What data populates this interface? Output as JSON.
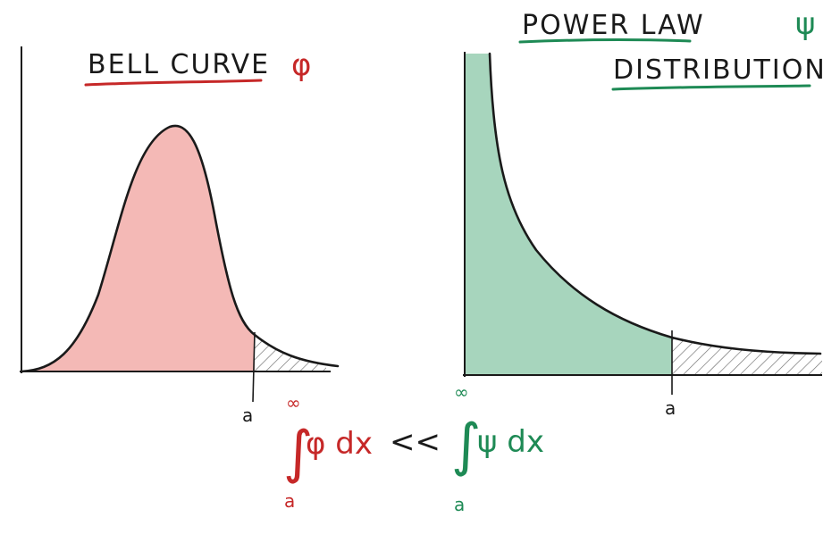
{
  "left_panel": {
    "title": "BELL CURVE",
    "symbol": "φ",
    "threshold_label": "a"
  },
  "right_panel": {
    "title_line1": "POWER LAW",
    "title_line2": "DISTRIBUTION",
    "symbol": "ψ",
    "threshold_label": "a"
  },
  "inequality": {
    "left_integral": {
      "upper": "∞",
      "sign": "∫",
      "integrand": "φ dx",
      "lower": "a"
    },
    "relation": "<<",
    "right_integral": {
      "upper": "∞",
      "sign": "∫",
      "integrand": "ψ dx",
      "lower": "a"
    }
  },
  "colors": {
    "ink": "#1a1a1a",
    "bell_fill": "#f4b9b6",
    "bell_accent": "#c62828",
    "power_fill": "#a7d5bd",
    "power_accent": "#1e8a55",
    "hatch": "#6b6b6b"
  }
}
